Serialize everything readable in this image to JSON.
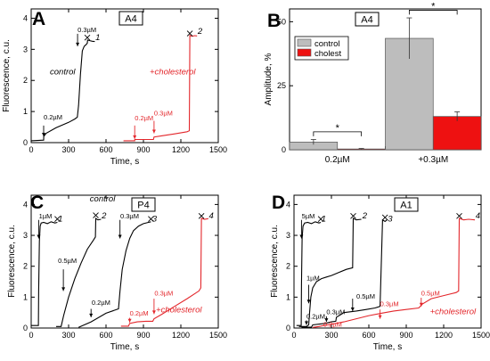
{
  "panel_labels": {
    "A": "A",
    "B": "B",
    "C": "C",
    "D": "D"
  },
  "chart_data": [
    {
      "id": "A",
      "type": "line",
      "box_label": "A4",
      "xlabel": "Time, s",
      "ylabel": "Fluorescence, c.u.",
      "xlim": [
        0,
        1500
      ],
      "ylim": [
        0,
        4.3
      ],
      "xticks": [
        0,
        300,
        600,
        900,
        1200,
        1500
      ],
      "yticks": [
        0,
        1,
        2,
        3,
        4
      ],
      "series": [
        {
          "name": "control",
          "color": "#000000",
          "trace_id": "1",
          "x": [
            0,
            100,
            101,
            120,
            200,
            300,
            350,
            370,
            372,
            380,
            395,
            410,
            425,
            440,
            450,
            452,
            470,
            490,
            510
          ],
          "y": [
            0.06,
            0.08,
            0.2,
            0.3,
            0.48,
            0.65,
            0.76,
            0.82,
            0.9,
            1.2,
            2.2,
            2.95,
            3.1,
            3.15,
            3.2,
            3.3,
            3.28,
            3.26,
            3.25
          ]
        },
        {
          "name": "+cholesterol",
          "color": "#e3262b",
          "trace_id": "2",
          "x": [
            740,
            800,
            830,
            831,
            900,
            980,
            985,
            1050,
            1150,
            1250,
            1268,
            1272,
            1290,
            1310,
            1330
          ],
          "y": [
            0.06,
            0.06,
            0.06,
            0.1,
            0.1,
            0.1,
            0.18,
            0.22,
            0.28,
            0.35,
            0.38,
            3.45,
            3.42,
            3.44,
            3.43
          ]
        }
      ],
      "annotations": [
        {
          "text": "0.2µM",
          "x": 100,
          "y": 0.75,
          "color": "#000000"
        },
        {
          "text": "0.3µM",
          "x": 372,
          "y": 3.55,
          "color": "#000000"
        },
        {
          "text": "1",
          "x": 515,
          "y": 3.3,
          "color": "#000000"
        },
        {
          "text": "control",
          "x": 150,
          "y": 2.2,
          "color": "#000000"
        },
        {
          "text": "+cholesterol",
          "x": 950,
          "y": 2.2,
          "color": "#e3262b"
        },
        {
          "text": "0.2µM",
          "x": 830,
          "y": 0.72,
          "color": "#e3262b"
        },
        {
          "text": "0.3µM",
          "x": 985,
          "y": 0.88,
          "color": "#e3262b"
        },
        {
          "text": "2",
          "x": 1335,
          "y": 3.5,
          "color": "#000000"
        }
      ]
    },
    {
      "id": "B",
      "type": "bar",
      "box_label": "A4",
      "ylabel": "Amplitude, %",
      "categories": [
        "0.2µM",
        "+0.3µM"
      ],
      "ylim": [
        0,
        55
      ],
      "yticks": [
        0,
        25,
        50
      ],
      "series": [
        {
          "name": "control",
          "color": "#bdbdbd",
          "values": [
            3,
            43.5
          ],
          "errors": [
            1,
            8
          ]
        },
        {
          "name": "cholest",
          "color": "#ee1111",
          "values": [
            0.3,
            13
          ],
          "errors": [
            0.2,
            1.8
          ]
        }
      ],
      "significance": [
        "*",
        "*"
      ],
      "legend_position": "top-left"
    },
    {
      "id": "C",
      "type": "line",
      "box_label": "P4",
      "xlabel": "Time, s",
      "ylabel": "Fluorescence, c.u.",
      "xlim": [
        0,
        1500
      ],
      "ylim": [
        0,
        4.3
      ],
      "xticks": [
        0,
        300,
        600,
        900,
        1200,
        1500
      ],
      "yticks": [
        0,
        1,
        2,
        3,
        4
      ],
      "series": [
        {
          "name": "trace 1",
          "color": "#000000",
          "trace_id": "1",
          "x": [
            0,
            58,
            60,
            66,
            72,
            80,
            100,
            130,
            160,
            190,
            210
          ],
          "y": [
            0.08,
            0.08,
            1.2,
            2.8,
            3.3,
            3.4,
            3.42,
            3.38,
            3.44,
            3.4,
            3.42
          ]
        },
        {
          "name": "trace 2",
          "color": "#000000",
          "trace_id": "2",
          "x": [
            200,
            240,
            260,
            300,
            350,
            400,
            450,
            500,
            515,
            518,
            535,
            560
          ],
          "y": [
            0.05,
            0.05,
            0.4,
            1.0,
            1.6,
            2.1,
            2.55,
            2.85,
            2.95,
            3.55,
            3.5,
            3.52
          ]
        },
        {
          "name": "control",
          "color": "#000000",
          "trace_id": "3",
          "x": [
            380,
            480,
            600,
            700,
            712,
            730,
            760,
            790,
            820,
            860,
            900,
            940,
            960
          ],
          "y": [
            0.02,
            0.2,
            0.48,
            0.62,
            1.2,
            1.9,
            2.5,
            2.9,
            3.15,
            3.3,
            3.38,
            3.42,
            3.44
          ]
        },
        {
          "name": "+cholesterol",
          "color": "#e3262b",
          "trace_id": "4",
          "x": [
            720,
            780,
            790,
            850,
            920,
            975,
            985,
            1050,
            1150,
            1250,
            1345,
            1360,
            1365,
            1390,
            1420
          ],
          "y": [
            0.06,
            0.06,
            0.15,
            0.2,
            0.22,
            0.22,
            0.3,
            0.45,
            0.7,
            0.95,
            1.2,
            1.3,
            3.55,
            3.52,
            3.54
          ]
        }
      ],
      "annotations": [
        {
          "text": "1µM",
          "x": 62,
          "y": 3.55,
          "color": "#000000"
        },
        {
          "text": "1",
          "x": 215,
          "y": 3.45,
          "color": "#000000"
        },
        {
          "text": "0.5µM",
          "x": 215,
          "y": 2.1,
          "color": "#000000"
        },
        {
          "text": "2",
          "x": 565,
          "y": 3.55,
          "color": "#000000"
        },
        {
          "text": "control",
          "x": 470,
          "y": 4.1,
          "color": "#000000"
        },
        {
          "text": "0.2µM",
          "x": 485,
          "y": 0.75,
          "color": "#000000"
        },
        {
          "text": "0.3µM",
          "x": 714,
          "y": 3.55,
          "color": "#000000"
        },
        {
          "text": "3",
          "x": 970,
          "y": 3.45,
          "color": "#000000"
        },
        {
          "text": "0.2µM",
          "x": 790,
          "y": 0.4,
          "color": "#e3262b"
        },
        {
          "text": "0.3µM",
          "x": 988,
          "y": 1.05,
          "color": "#e3262b"
        },
        {
          "text": "+cholesterol",
          "x": 1000,
          "y": 0.5,
          "color": "#e3262b"
        },
        {
          "text": "4",
          "x": 1425,
          "y": 3.55,
          "color": "#000000"
        }
      ]
    },
    {
      "id": "D",
      "type": "line",
      "box_label": "A1",
      "xlabel": "Time, s",
      "ylabel": "Fluorescence, c.u.",
      "xlim": [
        0,
        1500
      ],
      "ylim": [
        0,
        4.3
      ],
      "xticks": [
        0,
        300,
        600,
        900,
        1200,
        1500
      ],
      "yticks": [
        0,
        1,
        2,
        3,
        4
      ],
      "series": [
        {
          "name": "trace 1",
          "color": "#000000",
          "trace_id": "1",
          "x": [
            20,
            58,
            60,
            65,
            72,
            85,
            110,
            140,
            170,
            200,
            215
          ],
          "y": [
            0.08,
            0.08,
            1.4,
            2.9,
            3.3,
            3.4,
            3.42,
            3.38,
            3.44,
            3.4,
            3.42
          ]
        },
        {
          "name": "trace 2",
          "color": "#000000",
          "trace_id": "2",
          "x": [
            40,
            100,
            118,
            125,
            135,
            150,
            180,
            220,
            260,
            300,
            360,
            420,
            470,
            475,
            500,
            540
          ],
          "y": [
            0.05,
            0.05,
            0.1,
            0.5,
            1.0,
            1.3,
            1.5,
            1.6,
            1.65,
            1.7,
            1.8,
            1.9,
            1.95,
            3.55,
            3.5,
            3.52
          ]
        },
        {
          "name": "trace 3",
          "color": "#000000",
          "trace_id": "3",
          "x": [
            60,
            140,
            150,
            250,
            300,
            335,
            340,
            400,
            500,
            580,
            650,
            690,
            710,
            730,
            745
          ],
          "y": [
            0.03,
            0.03,
            0.1,
            0.15,
            0.2,
            0.22,
            0.35,
            0.5,
            0.55,
            0.6,
            0.65,
            0.7,
            3.5,
            3.45,
            3.5
          ]
        },
        {
          "name": "+cholesterol",
          "color": "#e3262b",
          "trace_id": "4",
          "x": [
            150,
            200,
            260,
            300,
            400,
            500,
            600,
            700,
            800,
            900,
            1000,
            1030,
            1100,
            1200,
            1300,
            1320,
            1325,
            1360,
            1400,
            1450
          ],
          "y": [
            0.02,
            0.05,
            0.1,
            0.12,
            0.2,
            0.3,
            0.4,
            0.48,
            0.55,
            0.6,
            0.65,
            0.78,
            0.95,
            1.05,
            1.15,
            1.2,
            3.55,
            3.5,
            3.52,
            3.5
          ]
        }
      ],
      "annotations": [
        {
          "text": "5µM",
          "x": 62,
          "y": 3.55,
          "color": "#000000"
        },
        {
          "text": "1",
          "x": 220,
          "y": 3.45,
          "color": "#000000"
        },
        {
          "text": "1µM",
          "x": 100,
          "y": 1.55,
          "color": "#000000"
        },
        {
          "text": "0.2µM",
          "x": 100,
          "y": 0.3,
          "color": "#000000"
        },
        {
          "text": "0.3µM",
          "x": 260,
          "y": 0.45,
          "color": "#000000"
        },
        {
          "text": "0.2µM",
          "x": 235,
          "y": 0.05,
          "color": "#e3262b"
        },
        {
          "text": "2",
          "x": 548,
          "y": 3.55,
          "color": "#000000"
        },
        {
          "text": "0.5µM",
          "x": 500,
          "y": 0.95,
          "color": "#000000"
        },
        {
          "text": "3",
          "x": 752,
          "y": 3.45,
          "color": "#000000"
        },
        {
          "text": "0.3µM",
          "x": 690,
          "y": 0.7,
          "color": "#e3262b"
        },
        {
          "text": "0.5µM",
          "x": 1020,
          "y": 1.05,
          "color": "#e3262b"
        },
        {
          "text": "+cholesterol",
          "x": 1090,
          "y": 0.45,
          "color": "#e3262b"
        },
        {
          "text": "4",
          "x": 1455,
          "y": 3.55,
          "color": "#000000"
        }
      ]
    }
  ]
}
